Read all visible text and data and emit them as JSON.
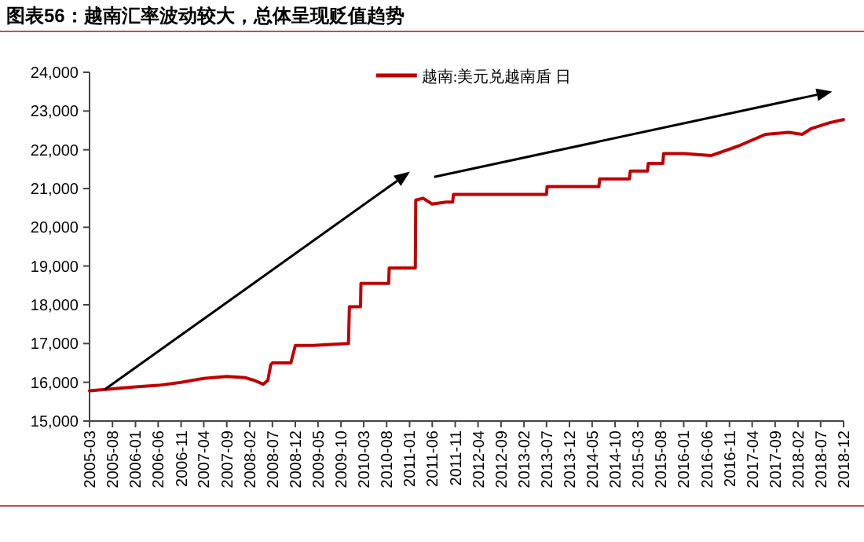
{
  "chart_data": {
    "type": "line",
    "title": "图表56：越南汇率波动较大，总体呈现贬值趋势",
    "legend": "top",
    "xlim": [
      "2005-03",
      "2018-12"
    ],
    "xticks": [
      "2005-03",
      "2005-08",
      "2006-01",
      "2006-06",
      "2006-11",
      "2007-04",
      "2007-09",
      "2008-02",
      "2008-07",
      "2008-12",
      "2009-05",
      "2009-10",
      "2010-03",
      "2010-08",
      "2011-01",
      "2011-06",
      "2011-11",
      "2012-04",
      "2012-09",
      "2013-02",
      "2013-07",
      "2013-12",
      "2014-05",
      "2014-10",
      "2015-03",
      "2015-08",
      "2016-01",
      "2016-06",
      "2016-11",
      "2017-04",
      "2017-09",
      "2018-02",
      "2018-07",
      "2018-12"
    ],
    "ylim": [
      15000,
      24000
    ],
    "yticks": [
      {
        "value": 15000,
        "label": "15,000"
      },
      {
        "value": 16000,
        "label": "16,000"
      },
      {
        "value": 17000,
        "label": "17,000"
      },
      {
        "value": 18000,
        "label": "18,000"
      },
      {
        "value": 19000,
        "label": "19,000"
      },
      {
        "value": 20000,
        "label": "20,000"
      },
      {
        "value": 21000,
        "label": "21,000"
      },
      {
        "value": 22000,
        "label": "22,000"
      },
      {
        "value": 23000,
        "label": "23,000"
      },
      {
        "value": 24000,
        "label": "24,000"
      }
    ],
    "x": [
      "2005-03",
      "2005-08",
      "2006-01",
      "2006-06",
      "2006-11",
      "2007-04",
      "2007-09",
      "2008-01",
      "2008-03",
      "2008-05",
      "2008-06",
      "2008-06-20",
      "2008-07",
      "2008-11",
      "2008-12",
      "2009-04",
      "2009-11-20",
      "2009-11-26",
      "2010-02-08",
      "2010-02-11",
      "2010-08-15",
      "2010-08-18",
      "2011-02-08",
      "2011-02-11",
      "2011-04",
      "2011-06",
      "2011-09",
      "2011-10-15",
      "2011-10-20",
      "2013-07-01",
      "2013-07-05",
      "2014-06-15",
      "2014-06-20",
      "2015-01-05",
      "2015-01-10",
      "2015-05-05",
      "2015-05-10",
      "2015-08-15",
      "2015-08-20",
      "2016-01",
      "2016-07",
      "2017-01",
      "2017-07",
      "2017-12",
      "2018-03",
      "2018-05",
      "2018-09",
      "2018-12"
    ],
    "series": [
      {
        "name": "越南:美元兑越南盾 日",
        "color": "#c00000",
        "values": [
          15780,
          15830,
          15880,
          15920,
          16000,
          16100,
          16150,
          16120,
          16050,
          15950,
          16050,
          16450,
          16500,
          16500,
          16950,
          16950,
          17000,
          17950,
          17950,
          18550,
          18550,
          18950,
          18950,
          20700,
          20750,
          20600,
          20650,
          20650,
          20850,
          20850,
          21050,
          21050,
          21250,
          21250,
          21450,
          21450,
          21650,
          21650,
          21900,
          21900,
          21850,
          22100,
          22400,
          22450,
          22400,
          22550,
          22700,
          22780
        ]
      }
    ]
  }
}
